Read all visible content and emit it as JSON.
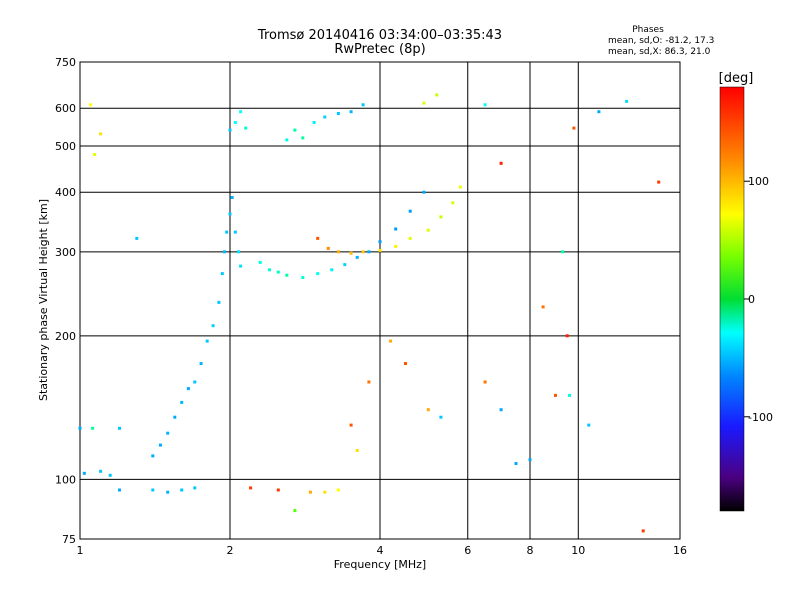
{
  "chart_data": {
    "type": "scatter",
    "title": "Tromsø 20140416 03:34:00–03:35:43",
    "subtitle": "RwPretec (8p)",
    "xlabel": "Frequency [MHz]",
    "ylabel": "Stationary phase Virtual Height [km]",
    "x_scale": "log",
    "y_scale": "log",
    "xlim": [
      1,
      16
    ],
    "ylim": [
      75,
      750
    ],
    "x_ticks": [
      "1",
      "2",
      "4",
      "6",
      "8",
      "10",
      "16"
    ],
    "y_ticks": [
      "75",
      "100",
      "200",
      "300",
      "400",
      "500",
      "600",
      "750"
    ],
    "grid": true,
    "stats": {
      "heading": "Phases",
      "line_o": "mean, sd,O: -81.2, 17.3",
      "line_x": "mean, sd,X:  86.3, 21.0"
    },
    "colorbar": {
      "unit_label": "[deg]",
      "min": -180,
      "max": 180,
      "tick_labels": [
        "100",
        "0",
        "-100"
      ],
      "tick_values": [
        100,
        0,
        -100
      ]
    },
    "series": [
      {
        "points": [
          [
            1.0,
            128,
            -120
          ],
          [
            1.02,
            103,
            -120
          ],
          [
            1.06,
            128,
            -60
          ],
          [
            1.1,
            104,
            -110
          ],
          [
            1.15,
            102,
            -110
          ],
          [
            1.2,
            128,
            -110
          ],
          [
            1.4,
            112,
            -120
          ],
          [
            1.45,
            118,
            -120
          ],
          [
            1.5,
            125,
            -115
          ],
          [
            1.55,
            135,
            -120
          ],
          [
            1.6,
            145,
            -115
          ],
          [
            1.65,
            155,
            -120
          ],
          [
            1.7,
            160,
            -110
          ],
          [
            1.75,
            175,
            -115
          ],
          [
            1.8,
            195,
            -110
          ],
          [
            1.85,
            210,
            -105
          ],
          [
            1.9,
            235,
            -110
          ],
          [
            1.93,
            270,
            -110
          ],
          [
            1.95,
            300,
            -115
          ],
          [
            1.97,
            330,
            -110
          ],
          [
            2.0,
            360,
            -110
          ],
          [
            2.02,
            390,
            -115
          ],
          [
            2.05,
            330,
            -110
          ],
          [
            2.08,
            300,
            -100
          ],
          [
            2.1,
            280,
            -100
          ],
          [
            2.0,
            540,
            -110
          ],
          [
            2.05,
            560,
            -90
          ],
          [
            2.1,
            590,
            -90
          ],
          [
            2.15,
            545,
            -75
          ],
          [
            2.3,
            285,
            -80
          ],
          [
            2.4,
            275,
            -75
          ],
          [
            2.5,
            272,
            -70
          ],
          [
            2.6,
            515,
            -80
          ],
          [
            2.7,
            540,
            -60
          ],
          [
            2.8,
            520,
            -55
          ],
          [
            2.6,
            268,
            -60
          ],
          [
            2.8,
            265,
            -75
          ],
          [
            3.0,
            270,
            -85
          ],
          [
            3.2,
            275,
            -95
          ],
          [
            3.4,
            282,
            -105
          ],
          [
            3.6,
            292,
            -115
          ],
          [
            3.8,
            300,
            -120
          ],
          [
            4.0,
            315,
            -125
          ],
          [
            4.3,
            335,
            -125
          ],
          [
            4.6,
            365,
            -125
          ],
          [
            4.9,
            400,
            -120
          ],
          [
            2.95,
            560,
            -95
          ],
          [
            3.1,
            575,
            -105
          ],
          [
            3.3,
            585,
            -110
          ],
          [
            3.5,
            590,
            -115
          ],
          [
            3.7,
            610,
            -110
          ],
          [
            1.4,
            95,
            -110
          ],
          [
            1.5,
            94,
            -115
          ],
          [
            1.6,
            95,
            -110
          ],
          [
            1.7,
            96,
            -110
          ],
          [
            1.2,
            95,
            -120
          ],
          [
            3.0,
            320,
            150
          ],
          [
            3.15,
            305,
            130
          ],
          [
            3.3,
            300,
            120
          ],
          [
            3.5,
            298,
            115
          ],
          [
            3.7,
            300,
            110
          ],
          [
            4.0,
            302,
            100
          ],
          [
            4.3,
            308,
            95
          ],
          [
            4.6,
            320,
            80
          ],
          [
            5.0,
            333,
            80
          ],
          [
            5.3,
            355,
            70
          ],
          [
            5.6,
            380,
            75
          ],
          [
            5.8,
            410,
            85
          ],
          [
            2.2,
            96,
            160
          ],
          [
            2.5,
            95,
            160
          ],
          [
            2.9,
            94,
            120
          ],
          [
            3.1,
            94,
            100
          ],
          [
            3.3,
            95,
            90
          ],
          [
            3.5,
            130,
            150
          ],
          [
            3.6,
            115,
            100
          ],
          [
            3.8,
            160,
            140
          ],
          [
            4.2,
            195,
            120
          ],
          [
            4.5,
            175,
            150
          ],
          [
            5.0,
            140,
            120
          ],
          [
            5.3,
            135,
            -110
          ],
          [
            6.5,
            160,
            140
          ],
          [
            7.0,
            140,
            -120
          ],
          [
            7.5,
            108,
            -120
          ],
          [
            8.0,
            110,
            -120
          ],
          [
            8.5,
            230,
            140
          ],
          [
            9.0,
            150,
            150
          ],
          [
            9.3,
            300,
            -60
          ],
          [
            9.5,
            200,
            170
          ],
          [
            9.6,
            150,
            -80
          ],
          [
            10.5,
            130,
            -110
          ],
          [
            11.0,
            590,
            -120
          ],
          [
            12.5,
            620,
            -100
          ],
          [
            13.5,
            78,
            160
          ],
          [
            14.5,
            420,
            160
          ],
          [
            4.9,
            615,
            80
          ],
          [
            5.2,
            640,
            70
          ],
          [
            6.5,
            610,
            -90
          ],
          [
            7.0,
            460,
            170
          ],
          [
            9.8,
            545,
            150
          ],
          [
            1.05,
            610,
            90
          ],
          [
            1.1,
            530,
            100
          ],
          [
            1.07,
            480,
            80
          ],
          [
            1.3,
            320,
            -110
          ],
          [
            2.7,
            86,
            30
          ]
        ]
      }
    ]
  }
}
